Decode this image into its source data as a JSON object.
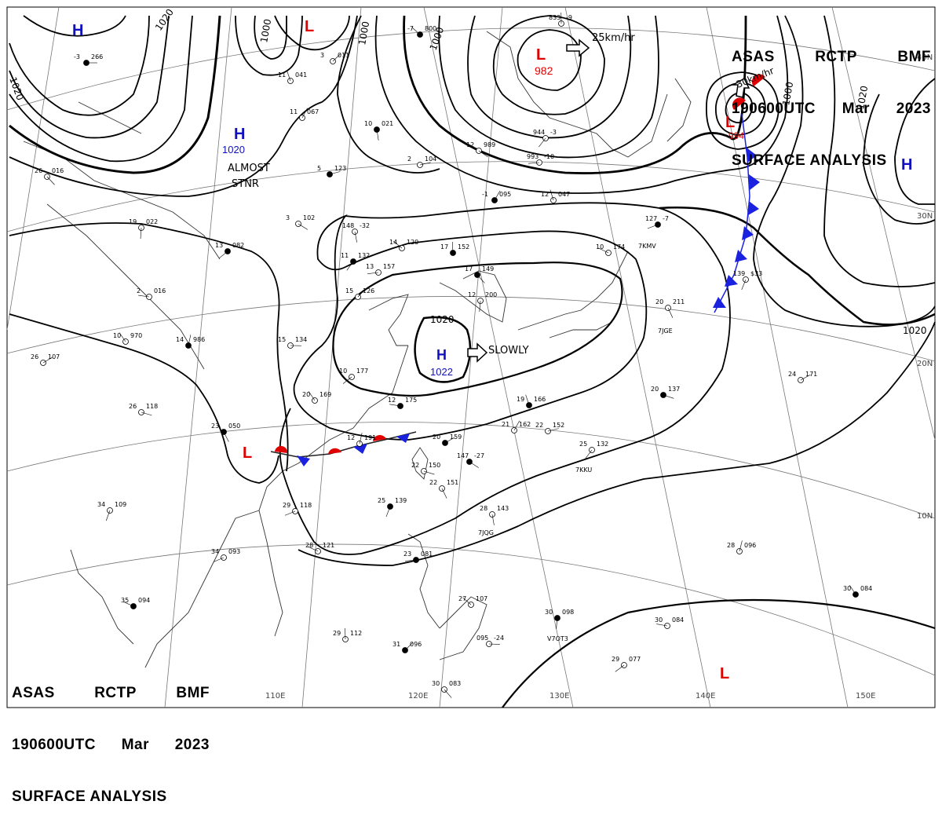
{
  "header": {
    "agency_line": [
      "ASAS",
      "RCTP",
      "BMF"
    ],
    "time_line": [
      "190600UTC",
      "Mar",
      "2023"
    ],
    "title": "SURFACE ANALYSIS"
  },
  "grid": {
    "lon_labels": [
      "110E",
      "120E",
      "130E",
      "140E",
      "150E"
    ],
    "lat_labels": [
      "30N",
      "20N",
      "10N"
    ]
  },
  "isobars": {
    "labels": [
      "1020",
      "1000",
      "1000",
      "1020",
      "1000",
      "1000",
      "1020",
      "1020",
      "1020",
      "1000"
    ]
  },
  "pressure_centers": [
    {
      "type": "H",
      "value": "",
      "color": "#1010c0"
    },
    {
      "type": "H",
      "value": "1020",
      "color": "#1010c0",
      "note": "ALMOST STNR"
    },
    {
      "type": "H",
      "value": "1022",
      "color": "#1010c0",
      "movement": "SLOWLY"
    },
    {
      "type": "H",
      "value": "",
      "color": "#1010c0"
    },
    {
      "type": "L",
      "value": "",
      "color": "#e00000"
    },
    {
      "type": "L",
      "value": "982",
      "color": "#e00000",
      "movement": "25km/hr"
    },
    {
      "type": "L",
      "value": "994",
      "color": "#e00000"
    },
    {
      "type": "L",
      "value": "",
      "color": "#e00000"
    },
    {
      "type": "L",
      "value": "",
      "color": "#e00000"
    }
  ],
  "movement_labels": {
    "h_central": "SLOWLY",
    "l_north": "25km/hr",
    "l_northeast": "30km/hr",
    "h_west_stnr": "ALMOST STNR"
  },
  "stations": [
    {
      "t": "-3",
      "p": "266"
    },
    {
      "t": "26",
      "p": "016"
    },
    {
      "t": "19",
      "p": "022"
    },
    {
      "t": "13",
      "p": "082"
    },
    {
      "t": "2",
      "p": "016"
    },
    {
      "t": "10",
      "p": "970"
    },
    {
      "t": "14",
      "p": "986"
    },
    {
      "t": "26",
      "p": "107"
    },
    {
      "t": "26",
      "p": "118"
    },
    {
      "t": "23",
      "p": "050"
    },
    {
      "t": "34",
      "p": "109"
    },
    {
      "t": "34",
      "p": "093"
    },
    {
      "t": "35",
      "p": "094"
    },
    {
      "t": "11",
      "p": "041"
    },
    {
      "t": "11",
      "p": "067"
    },
    {
      "t": "5",
      "p": "123"
    },
    {
      "t": "3",
      "p": "102"
    },
    {
      "t": "148",
      "p": "-32"
    },
    {
      "t": "11",
      "p": "132"
    },
    {
      "t": "13",
      "p": "157"
    },
    {
      "t": "14",
      "p": "120"
    },
    {
      "t": "17",
      "p": "152"
    },
    {
      "t": "15",
      "p": "126"
    },
    {
      "t": "15",
      "p": "134"
    },
    {
      "t": "17",
      "p": "149"
    },
    {
      "t": "12",
      "p": "200"
    },
    {
      "t": "10",
      "p": "177"
    },
    {
      "t": "12",
      "p": "175"
    },
    {
      "t": "20",
      "p": "169"
    },
    {
      "t": "12",
      "p": "191"
    },
    {
      "t": "20",
      "p": "159"
    },
    {
      "t": "22",
      "p": "150"
    },
    {
      "t": "22",
      "p": "151"
    },
    {
      "t": "25",
      "p": "139"
    },
    {
      "t": "29",
      "p": "118"
    },
    {
      "t": "28",
      "p": "121"
    },
    {
      "t": "19",
      "p": "166"
    },
    {
      "t": "21",
      "p": "162"
    },
    {
      "t": "22",
      "p": "152"
    },
    {
      "t": "147",
      "p": "-27"
    },
    {
      "t": "28",
      "p": "143"
    },
    {
      "t": "25",
      "p": "132"
    },
    {
      "t": "23",
      "p": "081"
    },
    {
      "t": "27",
      "p": "107"
    },
    {
      "t": "29",
      "p": "112"
    },
    {
      "t": "31",
      "p": "096"
    },
    {
      "t": "095",
      "p": "-24"
    },
    {
      "t": "30",
      "p": "083"
    },
    {
      "t": "30",
      "p": "098"
    },
    {
      "t": "29",
      "p": "077"
    },
    {
      "t": "30",
      "p": "084"
    },
    {
      "t": "30",
      "p": "084"
    },
    {
      "t": "28",
      "p": "096"
    },
    {
      "t": "24",
      "p": "171"
    },
    {
      "t": "20",
      "p": "137"
    },
    {
      "t": "20",
      "p": "211"
    },
    {
      "t": "139",
      "p": "$33"
    },
    {
      "t": "127",
      "p": "-7"
    },
    {
      "t": "10",
      "p": "174"
    },
    {
      "t": "12",
      "p": "047"
    },
    {
      "t": "-1",
      "p": "095"
    },
    {
      "t": "2",
      "p": "104"
    },
    {
      "t": "12",
      "p": "989"
    },
    {
      "t": "10",
      "p": "021"
    },
    {
      "t": "944",
      "p": "-3"
    },
    {
      "t": "993",
      "p": "-10"
    },
    {
      "t": "-7",
      "p": "800"
    },
    {
      "t": "833",
      "p": "-9"
    },
    {
      "t": "3",
      "p": "011"
    }
  ],
  "ship_ids": [
    "7KMV",
    "7JGE",
    "7KKU",
    "7JQG",
    "V7OT3"
  ],
  "colors": {
    "isobar": "#000000",
    "grid": "#707070",
    "coast": "#303030",
    "high": "#1010c0",
    "low": "#e00000",
    "cold_front": "#1a22e0",
    "warm_front": "#e00000"
  }
}
